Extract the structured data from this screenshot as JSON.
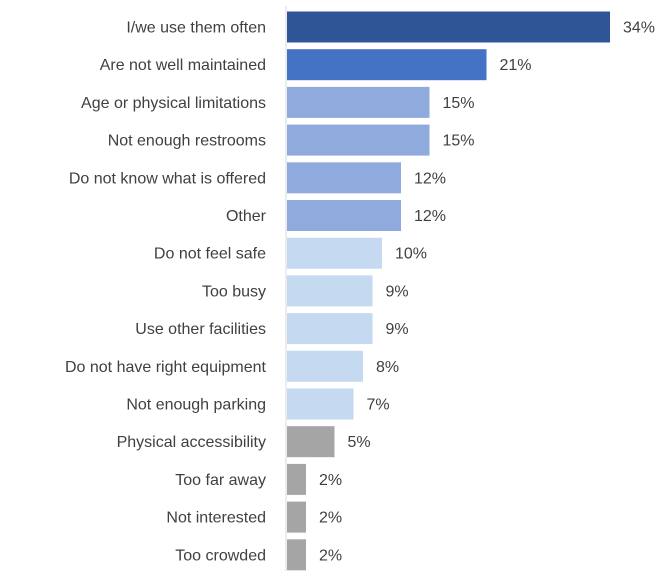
{
  "chart_data": {
    "type": "bar",
    "orientation": "horizontal",
    "categories": [
      "I/we use them often",
      "Are not well maintained",
      "Age or physical limitations",
      "Not enough restrooms",
      "Do not know what is offered",
      "Other",
      "Do not feel safe",
      "Too busy",
      "Use other facilities",
      "Do not have right equipment",
      "Not enough parking",
      "Physical accessibility",
      "Too far away",
      "Not interested",
      "Too crowded"
    ],
    "values": [
      34,
      21,
      15,
      15,
      12,
      12,
      10,
      9,
      9,
      8,
      7,
      5,
      2,
      2,
      2
    ],
    "value_labels": [
      "34%",
      "21%",
      "15%",
      "15%",
      "12%",
      "12%",
      "10%",
      "9%",
      "9%",
      "8%",
      "7%",
      "5%",
      "2%",
      "2%",
      "2%"
    ],
    "colors": [
      "#2f5597",
      "#4472c4",
      "#8faadc",
      "#8faadc",
      "#8faadc",
      "#8faadc",
      "#c5d9f1",
      "#c5d9f1",
      "#c5d9f1",
      "#c5d9f1",
      "#c5d9f1",
      "#a5a5a5",
      "#a5a5a5",
      "#a5a5a5",
      "#a5a5a5"
    ],
    "unit": "%",
    "xlim": [
      0,
      34
    ],
    "title": "",
    "xlabel": "",
    "ylabel": "",
    "grid": false,
    "legend": "none"
  }
}
